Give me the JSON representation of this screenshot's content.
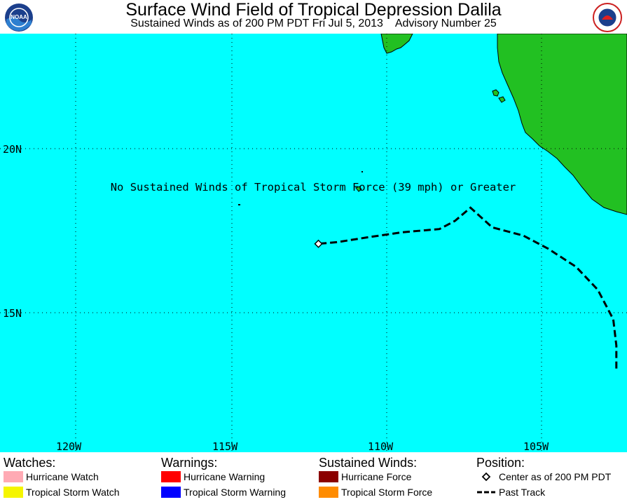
{
  "header": {
    "title": "Surface Wind Field of Tropical Depression Dalila",
    "subtitle": "Sustained Winds as of 200 PM PDT Fri Jul 5, 2013    Advisory Number 25",
    "logo_left": "noaa-logo",
    "logo_right": "national-weather-service-logo",
    "logo_left_text": "NOAA",
    "logo_right_text": "NATIONAL WEATHER SERVICE"
  },
  "map": {
    "ocean_color": "#00ffff",
    "land_color": "#22c022",
    "message": "No Sustained Winds of Tropical Storm Force (39 mph) or Greater",
    "lat_labels": [
      "20N",
      "15N"
    ],
    "lon_labels": [
      "120W",
      "115W",
      "110W",
      "105W"
    ],
    "storm_center": {
      "lon": -112.2,
      "lat": 17.1
    },
    "past_track": [
      {
        "lon": -102.6,
        "lat": 13.3
      },
      {
        "lon": -102.6,
        "lat": 14.0
      },
      {
        "lon": -102.7,
        "lat": 14.8
      },
      {
        "lon": -103.2,
        "lat": 15.7
      },
      {
        "lon": -103.9,
        "lat": 16.4
      },
      {
        "lon": -104.8,
        "lat": 16.95
      },
      {
        "lon": -105.6,
        "lat": 17.35
      },
      {
        "lon": -106.6,
        "lat": 17.6
      },
      {
        "lon": -107.3,
        "lat": 18.2
      },
      {
        "lon": -107.8,
        "lat": 17.8
      },
      {
        "lon": -108.3,
        "lat": 17.55
      },
      {
        "lon": -109.5,
        "lat": 17.45
      },
      {
        "lon": -110.6,
        "lat": 17.3
      },
      {
        "lon": -111.6,
        "lat": 17.15
      },
      {
        "lon": -112.2,
        "lat": 17.1
      }
    ]
  },
  "legend": {
    "watches": {
      "heading": "Watches:",
      "items": [
        {
          "label": "Hurricane Watch",
          "color": "#ffaab4"
        },
        {
          "label": "Tropical Storm Watch",
          "color": "#f5f500"
        }
      ]
    },
    "warnings": {
      "heading": "Warnings:",
      "items": [
        {
          "label": "Hurricane Warning",
          "color": "#ff0000"
        },
        {
          "label": "Tropical Storm Warning",
          "color": "#0000ff"
        }
      ]
    },
    "winds": {
      "heading": "Sustained Winds:",
      "items": [
        {
          "label": "Hurricane Force",
          "color": "#8b0000"
        },
        {
          "label": "Tropical Storm Force",
          "color": "#ff8c00"
        }
      ]
    },
    "position": {
      "heading": "Position:",
      "items": [
        {
          "label": "Center as of 200 PM PDT",
          "icon": "diamond-icon"
        },
        {
          "label": "Past Track",
          "icon": "dashed-line-icon"
        }
      ]
    }
  }
}
